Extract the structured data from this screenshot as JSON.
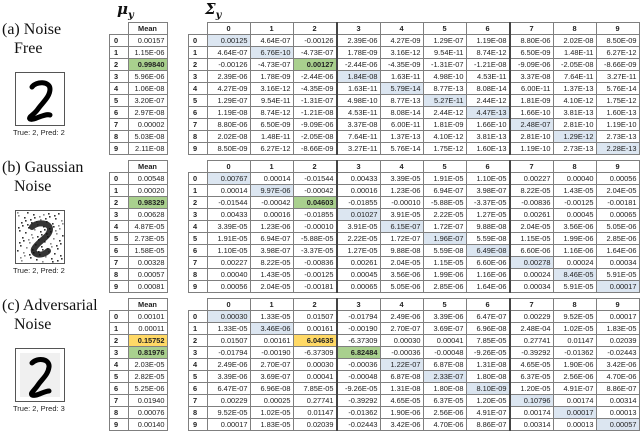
{
  "headers": {
    "mu": {
      "symbol": "μ",
      "sub": "y"
    },
    "sigma": {
      "symbol": "Σ",
      "sub": "y"
    }
  },
  "colors": {
    "diagonal": "#dce6f1",
    "predicted": "#a9d08e",
    "true_class_misclassified": "#ffd966",
    "border": "#7f7f7f"
  },
  "mean_header": "Mean",
  "column_labels": [
    "0",
    "1",
    "2",
    "3",
    "4",
    "5",
    "6",
    "7",
    "8",
    "9"
  ],
  "row_labels": [
    "0",
    "1",
    "2",
    "3",
    "4",
    "5",
    "6",
    "7",
    "8",
    "9"
  ],
  "sections": [
    {
      "label_line1": "(a) Noise",
      "label_line2": "Free",
      "caption": "True: 2, Pred: 2",
      "mean": [
        "0.00157",
        "1.15E-06",
        "0.99840",
        "5.96E-06",
        "1.06E-08",
        "3.20E-07",
        "2.97E-08",
        "0.00002",
        "5.03E-08",
        "2.11E-08"
      ],
      "sigma": [
        [
          "0.00125",
          "4.64E-07",
          "-0.00126",
          "2.39E-06",
          "4.27E-09",
          "1.29E-07",
          "1.19E-08",
          "8.80E-06",
          "2.02E-08",
          "8.50E-09"
        ],
        [
          "4.64E-07",
          "6.76E-10",
          "-4.73E-07",
          "1.78E-09",
          "3.16E-12",
          "9.54E-11",
          "8.74E-12",
          "6.50E-09",
          "1.48E-11",
          "6.27E-12"
        ],
        [
          "-0.00126",
          "-4.73E-07",
          "0.00127",
          "-2.44E-06",
          "-4.35E-09",
          "-1.31E-07",
          "-1.21E-08",
          "-9.09E-06",
          "-2.05E-08",
          "-8.66E-09"
        ],
        [
          "2.39E-06",
          "1.78E-09",
          "-2.44E-06",
          "1.84E-08",
          "1.63E-11",
          "4.98E-10",
          "4.53E-11",
          "3.37E-08",
          "7.64E-11",
          "3.27E-11"
        ],
        [
          "4.27E-09",
          "3.16E-12",
          "-4.35E-09",
          "1.63E-11",
          "5.79E-14",
          "8.77E-13",
          "8.08E-14",
          "6.00E-11",
          "1.37E-13",
          "5.76E-14"
        ],
        [
          "1.29E-07",
          "9.54E-11",
          "-1.31E-07",
          "4.98E-10",
          "8.77E-13",
          "5.27E-11",
          "2.44E-12",
          "1.81E-09",
          "4.10E-12",
          "1.75E-12"
        ],
        [
          "1.19E-08",
          "8.74E-12",
          "-1.21E-08",
          "4.53E-11",
          "8.08E-14",
          "2.44E-12",
          "4.47E-13",
          "1.66E-10",
          "3.81E-13",
          "1.60E-13"
        ],
        [
          "8.80E-06",
          "6.50E-09",
          "-9.09E-06",
          "3.37E-08",
          "6.00E-11",
          "1.81E-09",
          "1.66E-10",
          "2.48E-07",
          "2.81E-10",
          "1.19E-10"
        ],
        [
          "2.02E-08",
          "1.48E-11",
          "-2.05E-08",
          "7.64E-11",
          "1.37E-13",
          "4.10E-12",
          "3.81E-13",
          "2.81E-10",
          "1.29E-12",
          "2.73E-13"
        ],
        [
          "8.50E-09",
          "6.27E-12",
          "-8.66E-09",
          "3.27E-11",
          "5.76E-14",
          "1.75E-12",
          "1.60E-13",
          "1.19E-10",
          "2.73E-13",
          "2.28E-13"
        ]
      ]
    },
    {
      "label_line1": "(b) Gaussian",
      "label_line2": "Noise",
      "caption": "True: 2, Pred: 2",
      "mean": [
        "0.00548",
        "0.00020",
        "0.98329",
        "0.00628",
        "4.87E-05",
        "2.73E-05",
        "1.58E-05",
        "0.00328",
        "0.00057",
        "0.00081"
      ],
      "sigma": [
        [
          "0.00767",
          "0.00014",
          "-0.01544",
          "0.00433",
          "3.39E-05",
          "1.91E-05",
          "1.10E-05",
          "0.00227",
          "0.00040",
          "0.00056"
        ],
        [
          "0.00014",
          "9.97E-06",
          "-0.00042",
          "0.00016",
          "1.23E-06",
          "6.94E-07",
          "3.98E-07",
          "8.22E-05",
          "1.43E-05",
          "2.04E-05"
        ],
        [
          "-0.01544",
          "-0.00042",
          "0.04603",
          "-0.01855",
          "-0.00010",
          "-5.88E-05",
          "-3.37E-05",
          "-0.00836",
          "-0.00125",
          "-0.00181"
        ],
        [
          "0.00433",
          "0.00016",
          "-0.01855",
          "0.01027",
          "3.91E-05",
          "2.22E-05",
          "1.27E-05",
          "0.00261",
          "0.00045",
          "0.00065"
        ],
        [
          "3.39E-05",
          "1.23E-06",
          "-0.00010",
          "3.91E-05",
          "6.15E-07",
          "1.72E-07",
          "9.88E-08",
          "2.04E-05",
          "3.56E-06",
          "5.05E-06"
        ],
        [
          "1.91E-05",
          "6.94E-07",
          "-5.88E-05",
          "2.22E-05",
          "1.72E-07",
          "1.96E-07",
          "5.59E-08",
          "1.15E-05",
          "1.99E-06",
          "2.85E-06"
        ],
        [
          "1.10E-05",
          "3.98E-07",
          "-3.37E-05",
          "1.27E-05",
          "9.88E-08",
          "5.59E-08",
          "6.49E-08",
          "6.60E-06",
          "1.16E-06",
          "1.64E-06"
        ],
        [
          "0.00227",
          "8.22E-05",
          "-0.00836",
          "0.00261",
          "2.04E-05",
          "1.15E-05",
          "6.60E-06",
          "0.00278",
          "0.00024",
          "0.00034"
        ],
        [
          "0.00040",
          "1.43E-05",
          "-0.00125",
          "0.00045",
          "3.56E-06",
          "1.99E-06",
          "1.16E-06",
          "0.00024",
          "8.46E-05",
          "5.91E-05"
        ],
        [
          "0.00056",
          "2.04E-05",
          "-0.00181",
          "0.00065",
          "5.05E-06",
          "2.85E-06",
          "1.64E-06",
          "0.00034",
          "5.91E-05",
          "0.00017"
        ]
      ]
    },
    {
      "label_line1": "(c) Adversarial",
      "label_line2": "Noise",
      "caption": "True: 2, Pred: 3",
      "mean": [
        "0.00101",
        "0.00011",
        "0.15752",
        "0.81976",
        "2.03E-05",
        "2.82E-05",
        "5.25E-06",
        "0.01940",
        "0.00076",
        "0.00140"
      ],
      "sigma": [
        [
          "0.00030",
          "1.33E-05",
          "0.01507",
          "-0.01794",
          "2.49E-06",
          "3.39E-06",
          "6.47E-07",
          "0.00229",
          "9.52E-05",
          "0.00017"
        ],
        [
          "1.33E-05",
          "3.46E-06",
          "0.00161",
          "-0.00190",
          "2.70E-07",
          "3.69E-07",
          "6.96E-08",
          "2.48E-04",
          "1.02E-05",
          "1.83E-05"
        ],
        [
          "0.01507",
          "0.00161",
          "6.04635",
          "-6.37309",
          "0.00030",
          "0.00041",
          "7.85E-05",
          "0.27741",
          "0.01147",
          "0.02039"
        ],
        [
          "-0.01794",
          "-0.00190",
          "-6.37309",
          "6.82484",
          "-0.00036",
          "-0.00048",
          "-9.26E-05",
          "-0.39292",
          "-0.01362",
          "-0.02443"
        ],
        [
          "2.49E-06",
          "2.70E-07",
          "0.00030",
          "-0.00036",
          "1.22E-07",
          "6.87E-08",
          "1.31E-08",
          "4.65E-05",
          "1.90E-06",
          "3.42E-06"
        ],
        [
          "3.39E-06",
          "3.69E-07",
          "0.00041",
          "-0.00048",
          "6.87E-08",
          "2.33E-07",
          "1.80E-08",
          "6.37E-05",
          "2.56E-06",
          "4.70E-06"
        ],
        [
          "6.47E-07",
          "6.96E-08",
          "7.85E-05",
          "-9.26E-05",
          "1.31E-08",
          "1.80E-08",
          "8.10E-09",
          "1.20E-05",
          "4.91E-07",
          "8.86E-07"
        ],
        [
          "0.00229",
          "0.00025",
          "0.27741",
          "-0.39292",
          "4.65E-05",
          "6.37E-05",
          "1.20E-05",
          "0.10796",
          "0.00174",
          "0.00314"
        ],
        [
          "9.52E-05",
          "1.02E-05",
          "0.01147",
          "-0.01362",
          "1.90E-06",
          "2.56E-06",
          "4.91E-07",
          "0.00174",
          "0.00017",
          "0.00013"
        ],
        [
          "0.00017",
          "1.83E-05",
          "0.02039",
          "-0.02443",
          "3.42E-06",
          "4.70E-06",
          "8.86E-07",
          "0.00314",
          "0.00013",
          "0.00057"
        ]
      ]
    }
  ]
}
